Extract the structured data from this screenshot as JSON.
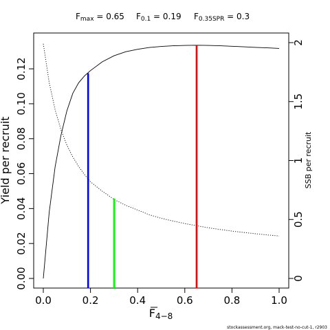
{
  "chart_data": {
    "type": "line",
    "title_parts": [
      {
        "main": "F",
        "sub": "max",
        "rest": " = 0.65"
      },
      {
        "main": "F",
        "sub": "0.1",
        "rest": " = 0.19"
      },
      {
        "main": "F",
        "sub": "0.35SPR",
        "rest": " = 0.3"
      }
    ],
    "xlabel": {
      "main": "F",
      "sub": "4−8"
    },
    "ylabel": "Yield per recruit",
    "y2label": "SSB per recruit",
    "footer": "stockassessment.org, mack-test-no-cut-1, r2903",
    "xlim": [
      0,
      1.0
    ],
    "ylim": [
      0,
      0.135
    ],
    "y2lim": [
      0,
      2.0
    ],
    "xticks": [
      "0.0",
      "0.2",
      "0.4",
      "0.6",
      "0.8",
      "1.0"
    ],
    "yticks": [
      "0.00",
      "0.02",
      "0.04",
      "0.06",
      "0.08",
      "0.10",
      "0.12"
    ],
    "y2ticks": [
      "0",
      "0.5",
      "1",
      "1.5",
      "2"
    ],
    "x": [
      0,
      0.025,
      0.05,
      0.075,
      0.1,
      0.125,
      0.15,
      0.175,
      0.2,
      0.25,
      0.3,
      0.35,
      0.4,
      0.45,
      0.5,
      0.55,
      0.6,
      0.65,
      0.7,
      0.75,
      0.8,
      0.85,
      0.9,
      0.95,
      1.0
    ],
    "series": [
      {
        "axis": "left",
        "style": "solid",
        "values": [
          0.0,
          0.038,
          0.064,
          0.082,
          0.096,
          0.106,
          0.112,
          0.116,
          0.119,
          0.124,
          0.1275,
          0.1298,
          0.1312,
          0.1322,
          0.1328,
          0.1332,
          0.1334,
          0.1335,
          0.1334,
          0.1332,
          0.1329,
          0.1326,
          0.1323,
          0.132,
          0.1317
        ]
      },
      {
        "axis": "right",
        "style": "dotted",
        "values": [
          1.99,
          1.66,
          1.43,
          1.26,
          1.13,
          1.03,
          0.95,
          0.88,
          0.82,
          0.74,
          0.67,
          0.62,
          0.58,
          0.54,
          0.51,
          0.487,
          0.466,
          0.447,
          0.43,
          0.415,
          0.402,
          0.39,
          0.379,
          0.369,
          0.36
        ]
      }
    ],
    "reference_lines": [
      {
        "name": "Fmax",
        "x": 0.65,
        "y": 0.1335,
        "color": "#ff0000"
      },
      {
        "name": "F0.1",
        "x": 0.19,
        "y": 0.1175,
        "color": "#0000ff"
      },
      {
        "name": "F0.35SPR",
        "x": 0.3,
        "y": 0.0458,
        "color": "#00ff00"
      }
    ],
    "grid": false,
    "colors": {
      "curve": "#000000",
      "axis": "#000000"
    }
  }
}
